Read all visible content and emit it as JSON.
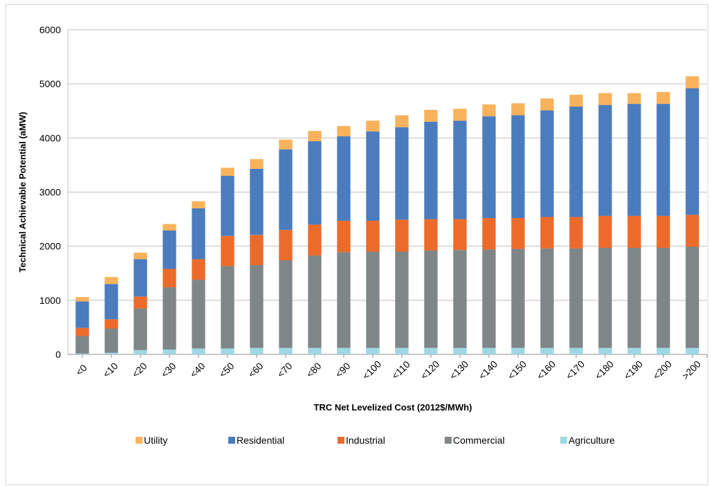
{
  "chart_data": {
    "type": "bar",
    "stacked": true,
    "title": "",
    "xlabel": "TRC Net Levelized Cost (2012$/MWh)",
    "ylabel": "Technical Achievable Potential (aMW)",
    "ylim": [
      0,
      6000
    ],
    "yticks": [
      0,
      1000,
      2000,
      3000,
      4000,
      5000,
      6000
    ],
    "grid": true,
    "legend_position": "bottom",
    "categories": [
      "<0",
      "<10",
      "<20",
      "<30",
      "<40",
      "<50",
      "<60",
      "<70",
      "<80",
      "<90",
      "<100",
      "<110",
      "<120",
      "<130",
      "<140",
      "<150",
      "<160",
      "<170",
      "<180",
      "<190",
      "<200",
      ">200"
    ],
    "series": [
      {
        "name": "Agriculture",
        "color": "#9ed8e4",
        "values": [
          15,
          30,
          80,
          90,
          110,
          110,
          120,
          120,
          120,
          120,
          120,
          120,
          120,
          120,
          120,
          120,
          120,
          120,
          120,
          120,
          120,
          120
        ]
      },
      {
        "name": "Commercial",
        "color": "#7f8688",
        "values": [
          325,
          450,
          770,
          1150,
          1270,
          1520,
          1530,
          1620,
          1710,
          1770,
          1780,
          1780,
          1800,
          1810,
          1820,
          1830,
          1840,
          1840,
          1850,
          1850,
          1850,
          1870
        ]
      },
      {
        "name": "Industrial",
        "color": "#ec6b2b",
        "values": [
          150,
          170,
          220,
          340,
          380,
          560,
          560,
          560,
          570,
          580,
          570,
          590,
          580,
          570,
          580,
          570,
          580,
          580,
          590,
          590,
          590,
          590
        ]
      },
      {
        "name": "Residential",
        "color": "#4a7cbe",
        "values": [
          490,
          650,
          690,
          710,
          940,
          1110,
          1220,
          1490,
          1540,
          1560,
          1650,
          1710,
          1800,
          1820,
          1880,
          1900,
          1970,
          2040,
          2050,
          2070,
          2070,
          2340
        ]
      },
      {
        "name": "Utility",
        "color": "#f9b25c",
        "values": [
          80,
          130,
          120,
          120,
          130,
          150,
          180,
          180,
          190,
          190,
          200,
          220,
          220,
          220,
          220,
          220,
          220,
          220,
          220,
          200,
          220,
          220
        ]
      }
    ],
    "legend_order": [
      "Utility",
      "Residential",
      "Industrial",
      "Commercial",
      "Agriculture"
    ]
  }
}
